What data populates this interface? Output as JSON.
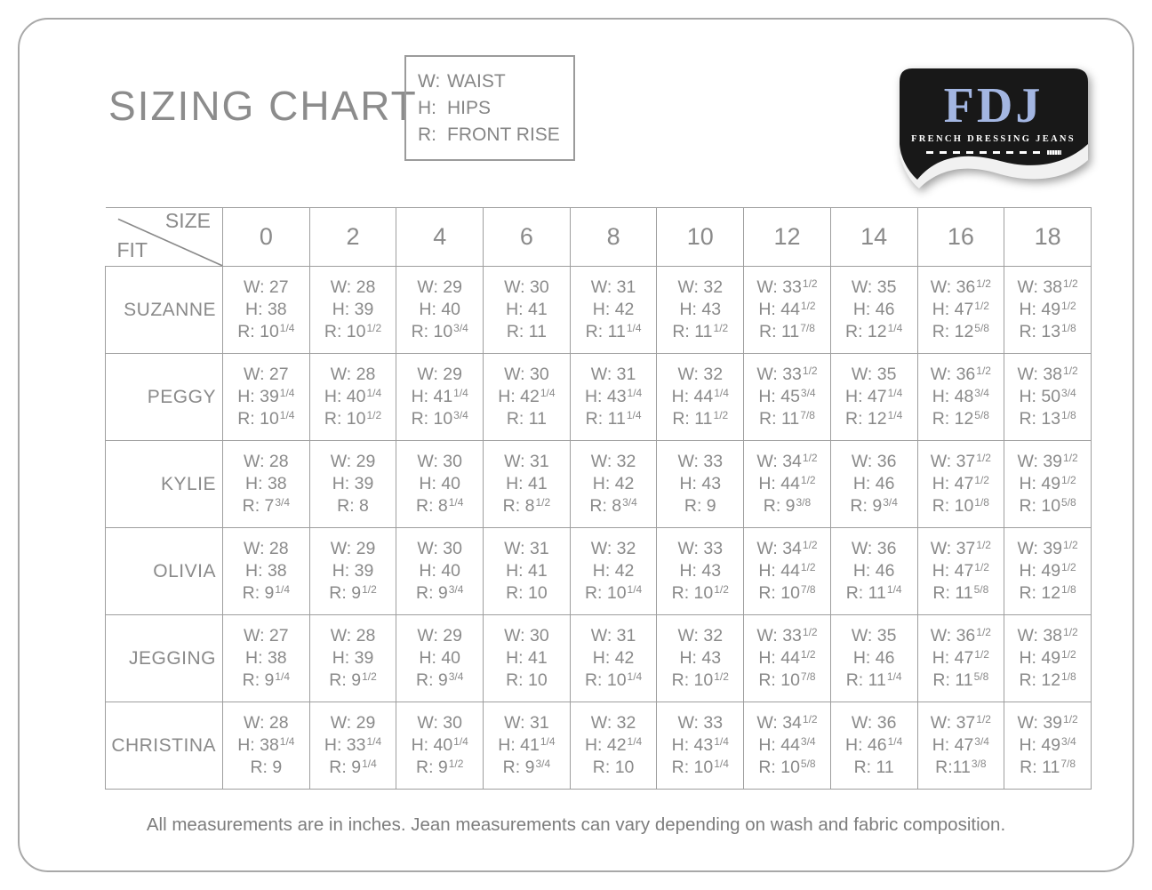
{
  "page": {
    "title": "SIZING CHART",
    "footer": "All measurements are in inches. Jean measurements can vary depending on wash and fabric composition."
  },
  "legend": {
    "items": [
      {
        "key": "W:",
        "label": "WAIST"
      },
      {
        "key": "H:",
        "label": "HIPS"
      },
      {
        "key": "R:",
        "label": "FRONT RISE"
      }
    ]
  },
  "logo": {
    "acronym": "FDJ",
    "name": "FRENCH DRESSING JEANS",
    "bg_color": "#181818",
    "acronym_color": "#a3b6e2",
    "name_color": "#ffffff"
  },
  "colors": {
    "text_gray": "#8a8a8a",
    "grid_gray": "#9e9e9e",
    "frame_gray": "#a8a8a8"
  },
  "table": {
    "corner": {
      "top": "SIZE",
      "bottom": "FIT"
    },
    "sizes": [
      "0",
      "2",
      "4",
      "6",
      "8",
      "10",
      "12",
      "14",
      "16",
      "18"
    ],
    "fits": [
      {
        "name": "SUZANNE",
        "cells": [
          [
            [
              "W: 27",
              ""
            ],
            [
              "H: 38",
              ""
            ],
            [
              "R: 10",
              "1/4"
            ]
          ],
          [
            [
              "W: 28",
              ""
            ],
            [
              "H: 39",
              ""
            ],
            [
              "R: 10",
              "1/2"
            ]
          ],
          [
            [
              "W: 29",
              ""
            ],
            [
              "H: 40",
              ""
            ],
            [
              "R: 10",
              "3/4"
            ]
          ],
          [
            [
              "W: 30",
              ""
            ],
            [
              "H: 41",
              ""
            ],
            [
              "R: 11",
              ""
            ]
          ],
          [
            [
              "W: 31",
              ""
            ],
            [
              "H: 42",
              ""
            ],
            [
              "R: 11",
              "1/4"
            ]
          ],
          [
            [
              "W: 32",
              ""
            ],
            [
              "H: 43",
              ""
            ],
            [
              "R: 11",
              "1/2"
            ]
          ],
          [
            [
              "W: 33",
              "1/2"
            ],
            [
              "H: 44",
              "1/2"
            ],
            [
              "R: 11",
              "7/8"
            ]
          ],
          [
            [
              "W: 35",
              ""
            ],
            [
              "H: 46",
              ""
            ],
            [
              "R: 12",
              "1/4"
            ]
          ],
          [
            [
              "W: 36",
              "1/2"
            ],
            [
              "H: 47",
              "1/2"
            ],
            [
              "R: 12",
              "5/8"
            ]
          ],
          [
            [
              "W: 38",
              "1/2"
            ],
            [
              "H: 49",
              "1/2"
            ],
            [
              "R: 13",
              "1/8"
            ]
          ]
        ]
      },
      {
        "name": "PEGGY",
        "cells": [
          [
            [
              "W: 27",
              ""
            ],
            [
              "H: 39",
              "1/4"
            ],
            [
              "R: 10",
              "1/4"
            ]
          ],
          [
            [
              "W: 28",
              ""
            ],
            [
              "H: 40",
              "1/4"
            ],
            [
              "R: 10",
              "1/2"
            ]
          ],
          [
            [
              "W: 29",
              ""
            ],
            [
              "H: 41",
              "1/4"
            ],
            [
              "R: 10",
              "3/4"
            ]
          ],
          [
            [
              "W: 30",
              ""
            ],
            [
              "H: 42",
              "1/4"
            ],
            [
              "R: 11",
              ""
            ]
          ],
          [
            [
              "W: 31",
              ""
            ],
            [
              "H: 43",
              "1/4"
            ],
            [
              "R: 11",
              "1/4"
            ]
          ],
          [
            [
              "W: 32",
              ""
            ],
            [
              "H: 44",
              "1/4"
            ],
            [
              "R: 11",
              "1/2"
            ]
          ],
          [
            [
              "W: 33",
              "1/2"
            ],
            [
              "H: 45",
              "3/4"
            ],
            [
              "R: 11",
              "7/8"
            ]
          ],
          [
            [
              "W: 35",
              ""
            ],
            [
              "H: 47",
              "1/4"
            ],
            [
              "R: 12",
              "1/4"
            ]
          ],
          [
            [
              "W: 36",
              "1/2"
            ],
            [
              "H: 48",
              "3/4"
            ],
            [
              "R: 12",
              "5/8"
            ]
          ],
          [
            [
              "W: 38",
              "1/2"
            ],
            [
              "H: 50",
              "3/4"
            ],
            [
              "R: 13",
              "1/8"
            ]
          ]
        ]
      },
      {
        "name": "KYLIE",
        "cells": [
          [
            [
              "W: 28",
              ""
            ],
            [
              "H: 38",
              ""
            ],
            [
              "R: 7",
              "3/4"
            ]
          ],
          [
            [
              "W: 29",
              ""
            ],
            [
              "H: 39",
              ""
            ],
            [
              "R: 8",
              ""
            ]
          ],
          [
            [
              "W: 30",
              ""
            ],
            [
              "H: 40",
              ""
            ],
            [
              "R: 8",
              "1/4"
            ]
          ],
          [
            [
              "W: 31",
              ""
            ],
            [
              "H: 41",
              ""
            ],
            [
              "R: 8",
              "1/2"
            ]
          ],
          [
            [
              "W: 32",
              ""
            ],
            [
              "H: 42",
              ""
            ],
            [
              "R: 8",
              "3/4"
            ]
          ],
          [
            [
              "W: 33",
              ""
            ],
            [
              "H: 43",
              ""
            ],
            [
              "R: 9",
              ""
            ]
          ],
          [
            [
              "W: 34",
              "1/2"
            ],
            [
              "H: 44",
              "1/2"
            ],
            [
              "R: 9",
              "3/8"
            ]
          ],
          [
            [
              "W: 36",
              ""
            ],
            [
              "H: 46",
              ""
            ],
            [
              "R: 9",
              "3/4"
            ]
          ],
          [
            [
              "W: 37",
              "1/2"
            ],
            [
              "H: 47",
              "1/2"
            ],
            [
              "R: 10",
              "1/8"
            ]
          ],
          [
            [
              "W: 39",
              "1/2"
            ],
            [
              "H: 49",
              "1/2"
            ],
            [
              "R: 10",
              "5/8"
            ]
          ]
        ]
      },
      {
        "name": "OLIVIA",
        "cells": [
          [
            [
              "W: 28",
              ""
            ],
            [
              "H: 38",
              ""
            ],
            [
              "R: 9",
              "1/4"
            ]
          ],
          [
            [
              "W: 29",
              ""
            ],
            [
              "H: 39",
              ""
            ],
            [
              "R: 9",
              "1/2"
            ]
          ],
          [
            [
              "W: 30",
              ""
            ],
            [
              "H: 40",
              ""
            ],
            [
              "R: 9",
              "3/4"
            ]
          ],
          [
            [
              "W: 31",
              ""
            ],
            [
              "H: 41",
              ""
            ],
            [
              "R: 10",
              ""
            ]
          ],
          [
            [
              "W: 32",
              ""
            ],
            [
              "H: 42",
              ""
            ],
            [
              "R: 10",
              "1/4"
            ]
          ],
          [
            [
              "W: 33",
              ""
            ],
            [
              "H: 43",
              ""
            ],
            [
              "R: 10",
              "1/2"
            ]
          ],
          [
            [
              "W: 34",
              "1/2"
            ],
            [
              "H: 44",
              "1/2"
            ],
            [
              "R: 10",
              "7/8"
            ]
          ],
          [
            [
              "W: 36",
              ""
            ],
            [
              "H: 46",
              ""
            ],
            [
              "R: 11",
              "1/4"
            ]
          ],
          [
            [
              "W: 37",
              "1/2"
            ],
            [
              "H: 47",
              "1/2"
            ],
            [
              "R: 11",
              "5/8"
            ]
          ],
          [
            [
              "W: 39",
              "1/2"
            ],
            [
              "H: 49",
              "1/2"
            ],
            [
              "R: 12",
              "1/8"
            ]
          ]
        ]
      },
      {
        "name": "JEGGING",
        "cells": [
          [
            [
              "W: 27",
              ""
            ],
            [
              "H: 38",
              ""
            ],
            [
              "R: 9",
              "1/4"
            ]
          ],
          [
            [
              "W: 28",
              ""
            ],
            [
              "H: 39",
              ""
            ],
            [
              "R: 9",
              "1/2"
            ]
          ],
          [
            [
              "W: 29",
              ""
            ],
            [
              "H: 40",
              ""
            ],
            [
              "R: 9",
              "3/4"
            ]
          ],
          [
            [
              "W: 30",
              ""
            ],
            [
              "H: 41",
              ""
            ],
            [
              "R: 10",
              ""
            ]
          ],
          [
            [
              "W: 31",
              ""
            ],
            [
              "H: 42",
              ""
            ],
            [
              "R: 10",
              "1/4"
            ]
          ],
          [
            [
              "W: 32",
              ""
            ],
            [
              "H: 43",
              ""
            ],
            [
              "R: 10",
              "1/2"
            ]
          ],
          [
            [
              "W: 33",
              "1/2"
            ],
            [
              "H: 44",
              "1/2"
            ],
            [
              "R: 10",
              "7/8"
            ]
          ],
          [
            [
              "W: 35",
              ""
            ],
            [
              "H: 46",
              ""
            ],
            [
              "R: 11",
              "1/4"
            ]
          ],
          [
            [
              "W: 36",
              "1/2"
            ],
            [
              "H: 47",
              "1/2"
            ],
            [
              "R: 11",
              "5/8"
            ]
          ],
          [
            [
              "W: 38",
              "1/2"
            ],
            [
              "H: 49",
              "1/2"
            ],
            [
              "R: 12",
              "1/8"
            ]
          ]
        ]
      },
      {
        "name": "CHRISTINA",
        "cells": [
          [
            [
              "W: 28",
              ""
            ],
            [
              "H: 38",
              "1/4"
            ],
            [
              "R: 9",
              ""
            ]
          ],
          [
            [
              "W: 29",
              ""
            ],
            [
              "H: 33",
              "1/4"
            ],
            [
              "R: 9",
              "1/4"
            ]
          ],
          [
            [
              "W: 30",
              ""
            ],
            [
              "H: 40",
              "1/4"
            ],
            [
              "R: 9",
              "1/2"
            ]
          ],
          [
            [
              "W: 31",
              ""
            ],
            [
              "H: 41",
              "1/4"
            ],
            [
              "R: 9",
              "3/4"
            ]
          ],
          [
            [
              "W: 32",
              ""
            ],
            [
              "H: 42",
              "1/4"
            ],
            [
              "R: 10",
              ""
            ]
          ],
          [
            [
              "W: 33",
              ""
            ],
            [
              "H: 43",
              "1/4"
            ],
            [
              "R: 10",
              "1/4"
            ]
          ],
          [
            [
              "W: 34",
              "1/2"
            ],
            [
              "H: 44",
              "3/4"
            ],
            [
              "R: 10",
              "5/8"
            ]
          ],
          [
            [
              "W: 36",
              ""
            ],
            [
              "H: 46",
              "1/4"
            ],
            [
              "R: 11",
              ""
            ]
          ],
          [
            [
              "W: 37",
              "1/2"
            ],
            [
              "H: 47",
              "3/4"
            ],
            [
              "R:11",
              "3/8"
            ]
          ],
          [
            [
              "W: 39",
              "1/2"
            ],
            [
              "H: 49",
              "3/4"
            ],
            [
              "R: 11",
              "7/8"
            ]
          ]
        ]
      }
    ]
  }
}
